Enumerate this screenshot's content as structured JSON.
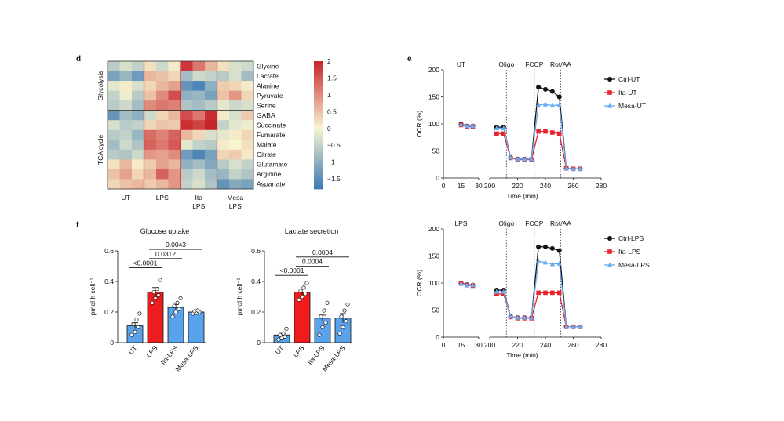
{
  "panel_labels": {
    "d": "d",
    "e": "e",
    "f": "f"
  },
  "colors": {
    "ut_bar": "#5aa2ea",
    "lps_bar": "#ee1c1c",
    "ctrl": "#111111",
    "ita": "#e8232a",
    "mesa": "#6aaaf0",
    "heat_low": "#3a78b4",
    "heat_mid": "#f7f5d0",
    "heat_high": "#c8232a"
  },
  "chart_data": [
    {
      "type": "heatmap",
      "panel": "d",
      "rows": [
        "Glycine",
        "Lactate",
        "Alanine",
        "Pyruvate",
        "Serine",
        "GABA",
        "Succinate",
        "Fumarate",
        "Malate",
        "Citrate",
        "Glutamate",
        "Arginine",
        "Aspartate"
      ],
      "row_groups": [
        {
          "name": "Glycolysis",
          "rows": [
            "Glycine",
            "Lactate",
            "Alanine",
            "Pyruvate",
            "Serine"
          ]
        },
        {
          "name": "TCA cycle",
          "rows": [
            "GABA",
            "Succinate",
            "Fumarate",
            "Malate",
            "Citrate",
            "Glutamate",
            "Arginine",
            "Aspartate"
          ]
        }
      ],
      "column_groups": [
        "UT",
        "LPS",
        "Ita\nLPS",
        "Mesa\nLPS"
      ],
      "replicates_per_group": 3,
      "colorbar": {
        "min": -1.8,
        "max": 2.0,
        "ticks": [
          "2",
          "1.5",
          "1",
          "0.5",
          "0",
          "−0.5",
          "−1",
          "−1.5"
        ],
        "tick_values": [
          2,
          1.5,
          1,
          0.5,
          0,
          -0.5,
          -1,
          -1.5
        ]
      },
      "values": [
        [
          -0.6,
          -0.3,
          -0.5,
          0.2,
          -0.4,
          0.1,
          1.8,
          1.2,
          0.6,
          0.2,
          -0.3,
          -0.4
        ],
        [
          -1.2,
          -0.9,
          -1.3,
          0.6,
          0.5,
          0.3,
          -0.8,
          -0.4,
          -0.5,
          -0.6,
          -0.3,
          -0.8
        ],
        [
          -0.2,
          0.1,
          -0.3,
          0.3,
          0.6,
          0.8,
          -1.4,
          -1.6,
          -1.0,
          0.4,
          0.3,
          0.1
        ],
        [
          -0.5,
          -0.1,
          -0.6,
          0.5,
          1.0,
          1.6,
          -1.0,
          -0.9,
          -1.2,
          0.5,
          0.9,
          0.3
        ],
        [
          -0.6,
          -0.4,
          -0.8,
          1.0,
          1.2,
          1.1,
          -0.7,
          -0.8,
          -0.6,
          -0.2,
          -0.4,
          -0.3
        ],
        [
          -1.4,
          -0.8,
          -1.0,
          -0.4,
          0.3,
          0.6,
          1.6,
          1.2,
          1.9,
          0.1,
          -0.3,
          0.4
        ],
        [
          -0.3,
          -0.6,
          -0.5,
          0.3,
          0.5,
          0.4,
          1.9,
          1.7,
          2.0,
          -0.5,
          -0.2,
          -0.1
        ],
        [
          -0.6,
          -0.5,
          -0.9,
          1.3,
          1.1,
          1.4,
          0.6,
          0.3,
          -0.3,
          -0.2,
          0.1,
          0.3
        ],
        [
          -0.8,
          -0.4,
          -0.7,
          1.4,
          1.2,
          1.5,
          -0.2,
          -0.5,
          -0.6,
          0.1,
          0.0,
          0.2
        ],
        [
          -0.6,
          -0.7,
          -0.4,
          0.9,
          0.8,
          1.0,
          -1.3,
          -1.6,
          -1.2,
          0.3,
          0.4,
          0.1
        ],
        [
          0.2,
          0.6,
          0.1,
          0.4,
          0.8,
          0.6,
          -1.0,
          -0.8,
          -1.1,
          -0.6,
          -0.3,
          -0.5
        ],
        [
          0.5,
          0.8,
          0.3,
          0.6,
          1.4,
          0.9,
          -0.6,
          -0.4,
          -0.8,
          -0.9,
          -0.5,
          -0.7
        ],
        [
          0.3,
          0.5,
          0.6,
          0.4,
          0.6,
          0.9,
          -0.5,
          -0.3,
          -0.7,
          -1.4,
          -1.1,
          -1.2
        ]
      ]
    },
    {
      "type": "line",
      "panel": "e",
      "condition": "UT",
      "xlabel": "Time (min)",
      "ylabel": "OCR (%)",
      "ylim": [
        0,
        200
      ],
      "yticks": [
        0,
        50,
        100,
        150,
        200
      ],
      "xticks_left": [
        0,
        15,
        30
      ],
      "xticks_right": [
        200,
        220,
        240,
        260,
        280
      ],
      "baseline_label": "UT",
      "injections": [
        {
          "label": "Oligo",
          "x": 212
        },
        {
          "label": "FCCP",
          "x": 232
        },
        {
          "label": "Rot/AA",
          "x": 251
        }
      ],
      "vline_baseline": 15,
      "legend_position": "right",
      "series": [
        {
          "name": "Ctrl-UT",
          "color": "#111111",
          "marker": "circle",
          "x": [
            15,
            20,
            25,
            205,
            210,
            215,
            220,
            225,
            230,
            235,
            240,
            245,
            250,
            255,
            260,
            265
          ],
          "y": [
            100,
            96,
            96,
            94,
            94,
            38,
            35,
            35,
            35,
            168,
            164,
            160,
            150,
            18,
            17,
            17
          ]
        },
        {
          "name": "Ita-UT",
          "color": "#e8232a",
          "marker": "square",
          "x": [
            15,
            20,
            25,
            205,
            210,
            215,
            220,
            225,
            230,
            235,
            240,
            245,
            250,
            255,
            260,
            265
          ],
          "y": [
            98,
            95,
            95,
            82,
            82,
            37,
            34,
            34,
            34,
            86,
            86,
            84,
            82,
            18,
            17,
            17
          ]
        },
        {
          "name": "Mesa-UT",
          "color": "#6aaaf0",
          "marker": "triangle",
          "x": [
            15,
            20,
            25,
            205,
            210,
            215,
            220,
            225,
            230,
            235,
            240,
            245,
            250,
            255,
            260,
            265
          ],
          "y": [
            99,
            96,
            96,
            92,
            92,
            38,
            35,
            35,
            35,
            135,
            136,
            134,
            135,
            18,
            17,
            17
          ]
        }
      ]
    },
    {
      "type": "line",
      "panel": "e",
      "condition": "LPS",
      "xlabel": "Time (min)",
      "ylabel": "OCR (%)",
      "ylim": [
        0,
        200
      ],
      "yticks": [
        0,
        50,
        100,
        150,
        200
      ],
      "xticks_left": [
        0,
        15,
        30
      ],
      "xticks_right": [
        200,
        220,
        240,
        260,
        280
      ],
      "baseline_label": "LPS",
      "injections": [
        {
          "label": "Oligo",
          "x": 212
        },
        {
          "label": "FCCP",
          "x": 232
        },
        {
          "label": "Rot/AA",
          "x": 251
        }
      ],
      "vline_baseline": 15,
      "legend_position": "right",
      "series": [
        {
          "name": "Ctrl-LPS",
          "color": "#111111",
          "marker": "circle",
          "x": [
            15,
            20,
            25,
            205,
            210,
            215,
            220,
            225,
            230,
            235,
            240,
            245,
            250,
            255,
            260,
            265
          ],
          "y": [
            100,
            97,
            96,
            87,
            87,
            38,
            36,
            36,
            36,
            167,
            167,
            164,
            160,
            19,
            19,
            19
          ]
        },
        {
          "name": "Ita-LPS",
          "color": "#e8232a",
          "marker": "square",
          "x": [
            15,
            20,
            25,
            205,
            210,
            215,
            220,
            225,
            230,
            235,
            240,
            245,
            250,
            255,
            260,
            265
          ],
          "y": [
            99,
            96,
            95,
            80,
            80,
            37,
            35,
            35,
            35,
            82,
            82,
            82,
            82,
            19,
            19,
            19
          ]
        },
        {
          "name": "Mesa-LPS",
          "color": "#6aaaf0",
          "marker": "triangle",
          "x": [
            15,
            20,
            25,
            205,
            210,
            215,
            220,
            225,
            230,
            235,
            240,
            245,
            250,
            255,
            260,
            265
          ],
          "y": [
            99,
            96,
            96,
            84,
            84,
            38,
            36,
            36,
            36,
            140,
            138,
            135,
            136,
            19,
            19,
            19
          ]
        }
      ]
    },
    {
      "type": "bar",
      "panel": "f",
      "title": "Glucose uptake",
      "ylabel": "pmol h cell⁻¹",
      "ylim": [
        0,
        0.6
      ],
      "yticks": [
        "0",
        "0.2",
        "0.4",
        "0.6"
      ],
      "ytick_values": [
        0,
        0.2,
        0.4,
        0.6
      ],
      "categories": [
        "UT",
        "LPS",
        "Ita-LPS",
        "Mesa-LPS"
      ],
      "values": [
        0.11,
        0.33,
        0.23,
        0.2
      ],
      "errors": [
        0.02,
        0.03,
        0.02,
        0.01
      ],
      "points": [
        [
          0.05,
          0.07,
          0.1,
          0.12,
          0.15,
          0.19
        ],
        [
          0.26,
          0.29,
          0.31,
          0.33,
          0.35,
          0.41
        ],
        [
          0.17,
          0.2,
          0.22,
          0.24,
          0.26,
          0.29
        ],
        [
          0.19,
          0.195,
          0.2,
          0.205,
          0.21
        ]
      ],
      "bar_colors": [
        "#5aa2ea",
        "#ee1c1c",
        "#5aa2ea",
        "#5aa2ea"
      ],
      "pvalues": [
        {
          "label": "<0.0001",
          "from": 0,
          "to": 1,
          "y": 0.49
        },
        {
          "label": "0.0312",
          "from": 1,
          "to": 2,
          "y": 0.55
        },
        {
          "label": "0.0043",
          "from": 1,
          "to": 3,
          "y": 0.61
        }
      ]
    },
    {
      "type": "bar",
      "panel": "f",
      "title": "Lactate secretion",
      "ylabel": "pmol h cell⁻¹",
      "ylim": [
        0,
        0.6
      ],
      "yticks": [
        "0",
        "0.2",
        "0.4",
        "0.6"
      ],
      "ytick_values": [
        0,
        0.2,
        0.4,
        0.6
      ],
      "categories": [
        "UT",
        "LPS",
        "Ita-LPS",
        "Mesa-LPS"
      ],
      "values": [
        0.05,
        0.33,
        0.16,
        0.16
      ],
      "errors": [
        0.01,
        0.02,
        0.02,
        0.03
      ],
      "points": [
        [
          0.02,
          0.03,
          0.04,
          0.05,
          0.06,
          0.09
        ],
        [
          0.28,
          0.3,
          0.32,
          0.34,
          0.36,
          0.39
        ],
        [
          0.05,
          0.1,
          0.13,
          0.17,
          0.21,
          0.26
        ],
        [
          0.06,
          0.1,
          0.14,
          0.17,
          0.21,
          0.25
        ]
      ],
      "bar_colors": [
        "#5aa2ea",
        "#ee1c1c",
        "#5aa2ea",
        "#5aa2ea"
      ],
      "pvalues": [
        {
          "label": "<0.0001",
          "from": 0,
          "to": 1,
          "y": 0.44
        },
        {
          "label": "0.0004",
          "from": 1,
          "to": 2,
          "y": 0.5
        },
        {
          "label": "0.0004",
          "from": 1,
          "to": 3,
          "y": 0.56
        }
      ]
    }
  ]
}
